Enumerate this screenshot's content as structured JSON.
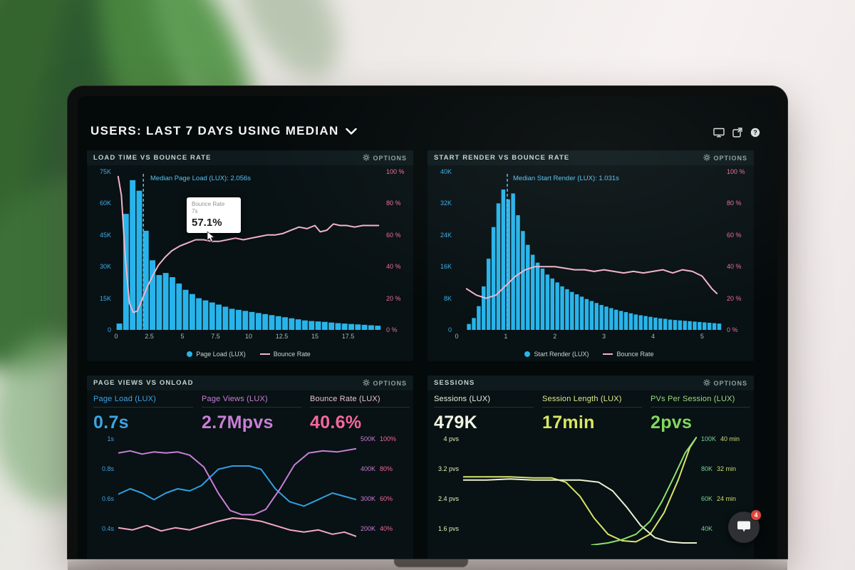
{
  "header": {
    "title": "USERS: LAST 7 DAYS USING MEDIAN",
    "icon_names": [
      "display-icon",
      "open-window-icon",
      "help-icon"
    ]
  },
  "panels": {
    "load": {
      "title": "LOAD TIME VS BOUNCE RATE",
      "options": "OPTIONS",
      "median_label": "Median Page Load (LUX): 2.056s",
      "tooltip": {
        "title": "Bounce Rate",
        "subtitle": "7s",
        "value": "57.1%"
      },
      "y_left": [
        "75K",
        "60K",
        "45K",
        "30K",
        "15K",
        "0"
      ],
      "y_right": [
        "100 %",
        "80 %",
        "60 %",
        "40 %",
        "20 %",
        "0 %"
      ],
      "legend": [
        "Page Load (LUX)",
        "Bounce Rate"
      ]
    },
    "render": {
      "title": "START RENDER VS BOUNCE RATE",
      "options": "OPTIONS",
      "median_label": "Median Start Render (LUX): 1.031s",
      "y_left": [
        "40K",
        "32K",
        "24K",
        "16K",
        "8K",
        "0"
      ],
      "y_right": [
        "100 %",
        "80 %",
        "60 %",
        "40 %",
        "20 %",
        "0 %"
      ],
      "legend": [
        "Start Render (LUX)",
        "Bounce Rate"
      ]
    },
    "views": {
      "title": "PAGE VIEWS VS ONLOAD",
      "options": "OPTIONS",
      "metrics": [
        {
          "label": "Page Load (LUX)",
          "value": "0.7s",
          "color": "#3da4e4"
        },
        {
          "label": "Page Views (LUX)",
          "value": "2.7Mpvs",
          "color": "#c77fd6"
        },
        {
          "label": "Bounce Rate (LUX)",
          "value": "40.6%",
          "color": "#f4679f"
        }
      ],
      "y_left": [
        "1s",
        "0.8s",
        "0.6s",
        "0.4s"
      ],
      "y_right": [
        [
          "500K",
          "100%"
        ],
        [
          "400K",
          "80%"
        ],
        [
          "300K",
          "60%"
        ],
        [
          "200K",
          "40%"
        ]
      ]
    },
    "sessions": {
      "title": "SESSIONS",
      "options": "OPTIONS",
      "metrics": [
        {
          "label": "Sessions (LUX)",
          "value": "479K",
          "color": "#f0f4e4"
        },
        {
          "label": "Session Length (LUX)",
          "value": "17min",
          "color": "#d9e662"
        },
        {
          "label": "PVs Per Session (LUX)",
          "value": "2pvs",
          "color": "#7fd95f"
        }
      ],
      "y_left": [
        "4 pvs",
        "3.2 pvs",
        "2.4 pvs",
        "1.6 pvs"
      ],
      "y_right": [
        [
          "100K",
          "40 min"
        ],
        [
          "80K",
          "32 min"
        ],
        [
          "60K",
          "24 min"
        ],
        [
          "40K",
          ""
        ]
      ]
    }
  },
  "chat": {
    "badge": "4"
  },
  "colors": {
    "bar_blue": "#28b4ea",
    "bounce_pink": "#f2b3ca",
    "median_blue": "#4fc3f4",
    "accent_purple": "#c77fd6",
    "accent_pink": "#f0679c",
    "accent_lime": "#d9e662",
    "accent_green": "#7fd95f",
    "badge_red": "#e0443a"
  },
  "chart_data": [
    {
      "id": "load",
      "type": "bar+line",
      "title": "LOAD TIME VS BOUNCE RATE",
      "x_start": 0,
      "x_step": 0.5,
      "x_max": 20,
      "y_left_max": 75,
      "y_left_unit": "K page views",
      "y_right_max": 100,
      "y_right_unit": "%",
      "bar_series": "Page Load (LUX)",
      "bar_color": "#28b4ea",
      "bars": [
        3,
        55,
        71,
        66,
        47,
        33,
        26,
        27,
        25,
        22,
        19,
        17,
        15,
        14,
        13,
        12,
        11,
        10,
        9.5,
        9,
        8.5,
        8,
        7.5,
        7,
        6.5,
        6,
        5.5,
        5,
        4.5,
        4.2,
        4,
        3.8,
        3.5,
        3.2,
        3,
        2.8,
        2.6,
        2.4,
        2.2,
        2
      ],
      "median_x": 2.056,
      "median_color": "#4fc3f4",
      "line_series": "Bounce Rate",
      "line_color": "#f2b3ca",
      "line_points": [
        [
          0.15,
          97
        ],
        [
          0.4,
          85
        ],
        [
          0.7,
          45
        ],
        [
          1,
          17
        ],
        [
          1.3,
          11
        ],
        [
          1.6,
          12
        ],
        [
          2,
          20
        ],
        [
          2.4,
          28
        ],
        [
          2.8,
          35
        ],
        [
          3.2,
          41
        ],
        [
          3.7,
          46
        ],
        [
          4.2,
          50
        ],
        [
          4.8,
          53
        ],
        [
          5.4,
          55
        ],
        [
          6,
          57
        ],
        [
          6.6,
          57
        ],
        [
          7.2,
          56
        ],
        [
          7.8,
          56
        ],
        [
          8.4,
          57
        ],
        [
          9,
          58
        ],
        [
          9.6,
          57
        ],
        [
          10.2,
          58
        ],
        [
          10.8,
          59
        ],
        [
          11.4,
          60
        ],
        [
          12,
          60
        ],
        [
          12.6,
          61
        ],
        [
          13.2,
          63
        ],
        [
          13.8,
          65
        ],
        [
          14.4,
          64
        ],
        [
          15,
          66
        ],
        [
          15.4,
          62
        ],
        [
          15.9,
          63
        ],
        [
          16.4,
          67
        ],
        [
          16.9,
          66
        ],
        [
          17.4,
          66
        ],
        [
          18,
          65
        ],
        [
          18.6,
          66
        ],
        [
          19.2,
          66
        ],
        [
          19.8,
          66
        ]
      ],
      "x_ticks": [
        {
          "v": 0,
          "label": "0"
        },
        {
          "v": 2.5,
          "label": "2.5"
        },
        {
          "v": 5,
          "label": "5"
        },
        {
          "v": 7.5,
          "label": "7.5"
        },
        {
          "v": 10,
          "label": "10"
        },
        {
          "v": 12.5,
          "label": "12.5"
        },
        {
          "v": 15,
          "label": "15"
        },
        {
          "v": 17.5,
          "label": "17.5"
        }
      ]
    },
    {
      "id": "render",
      "type": "bar+line",
      "title": "START RENDER VS BOUNCE RATE",
      "x_start": 0.2,
      "x_step": 0.1,
      "x_max": 5.4,
      "y_left_max": 40,
      "y_left_unit": "K page views",
      "y_right_max": 100,
      "y_right_unit": "%",
      "bar_series": "Start Render (LUX)",
      "bar_color": "#28b4ea",
      "bars": [
        1.5,
        3,
        6,
        11,
        18,
        26,
        32,
        35.5,
        33,
        34.5,
        29,
        25,
        21.5,
        19,
        17,
        15.5,
        14,
        13,
        12,
        11,
        10.3,
        9.6,
        9,
        8.4,
        7.8,
        7.3,
        6.8,
        6.3,
        5.9,
        5.5,
        5.1,
        4.8,
        4.5,
        4.2,
        3.9,
        3.7,
        3.5,
        3.3,
        3.1,
        2.9,
        2.8,
        2.6,
        2.5,
        2.4,
        2.3,
        2.2,
        2.1,
        2,
        1.9,
        1.8,
        1.7,
        1.6
      ],
      "median_x": 1.031,
      "median_color": "#4fc3f4",
      "line_series": "Bounce Rate",
      "line_color": "#f2b3ca",
      "line_points": [
        [
          0.2,
          26
        ],
        [
          0.4,
          22
        ],
        [
          0.6,
          20
        ],
        [
          0.8,
          22
        ],
        [
          1,
          28
        ],
        [
          1.2,
          34
        ],
        [
          1.4,
          38
        ],
        [
          1.6,
          40
        ],
        [
          1.8,
          40
        ],
        [
          2,
          40
        ],
        [
          2.2,
          39
        ],
        [
          2.4,
          38
        ],
        [
          2.6,
          38
        ],
        [
          2.8,
          37
        ],
        [
          3,
          38
        ],
        [
          3.2,
          37
        ],
        [
          3.4,
          36
        ],
        [
          3.6,
          37
        ],
        [
          3.8,
          36
        ],
        [
          4,
          37
        ],
        [
          4.2,
          38
        ],
        [
          4.4,
          36
        ],
        [
          4.6,
          38
        ],
        [
          4.8,
          37
        ],
        [
          5,
          34
        ],
        [
          5.1,
          30
        ],
        [
          5.2,
          26
        ],
        [
          5.3,
          23
        ]
      ],
      "x_ticks": [
        {
          "v": 0,
          "label": "0"
        },
        {
          "v": 1,
          "label": "1"
        },
        {
          "v": 2,
          "label": "2"
        },
        {
          "v": 3,
          "label": "3"
        },
        {
          "v": 4,
          "label": "4"
        },
        {
          "v": 5,
          "label": "5"
        }
      ]
    },
    {
      "id": "views",
      "type": "line",
      "title": "PAGE VIEWS VS ONLOAD",
      "series": [
        {
          "name": "Page Load (LUX)",
          "color": "#2f9fe0",
          "points": [
            [
              0,
              0.47
            ],
            [
              0.05,
              0.52
            ],
            [
              0.1,
              0.48
            ],
            [
              0.15,
              0.42
            ],
            [
              0.2,
              0.48
            ],
            [
              0.25,
              0.52
            ],
            [
              0.3,
              0.5
            ],
            [
              0.35,
              0.55
            ],
            [
              0.42,
              0.7
            ],
            [
              0.48,
              0.73
            ],
            [
              0.55,
              0.73
            ],
            [
              0.6,
              0.7
            ],
            [
              0.66,
              0.52
            ],
            [
              0.72,
              0.4
            ],
            [
              0.78,
              0.36
            ],
            [
              0.84,
              0.42
            ],
            [
              0.9,
              0.48
            ],
            [
              0.95,
              0.45
            ],
            [
              1,
              0.42
            ]
          ]
        },
        {
          "name": "Page Views (LUX)",
          "color": "#c77fd6",
          "points": [
            [
              0,
              0.85
            ],
            [
              0.05,
              0.87
            ],
            [
              0.1,
              0.84
            ],
            [
              0.15,
              0.86
            ],
            [
              0.2,
              0.85
            ],
            [
              0.25,
              0.86
            ],
            [
              0.3,
              0.83
            ],
            [
              0.36,
              0.72
            ],
            [
              0.42,
              0.48
            ],
            [
              0.47,
              0.32
            ],
            [
              0.52,
              0.28
            ],
            [
              0.57,
              0.28
            ],
            [
              0.62,
              0.33
            ],
            [
              0.68,
              0.52
            ],
            [
              0.74,
              0.74
            ],
            [
              0.8,
              0.85
            ],
            [
              0.86,
              0.87
            ],
            [
              0.92,
              0.86
            ],
            [
              1,
              0.89
            ]
          ]
        },
        {
          "name": "Bounce Rate (LUX)",
          "color": "#f2a8c3",
          "points": [
            [
              0,
              0.16
            ],
            [
              0.06,
              0.14
            ],
            [
              0.12,
              0.18
            ],
            [
              0.18,
              0.13
            ],
            [
              0.24,
              0.16
            ],
            [
              0.3,
              0.14
            ],
            [
              0.36,
              0.18
            ],
            [
              0.42,
              0.22
            ],
            [
              0.48,
              0.25
            ],
            [
              0.54,
              0.24
            ],
            [
              0.6,
              0.22
            ],
            [
              0.66,
              0.18
            ],
            [
              0.72,
              0.14
            ],
            [
              0.78,
              0.12
            ],
            [
              0.84,
              0.14
            ],
            [
              0.9,
              0.1
            ],
            [
              0.95,
              0.12
            ],
            [
              1,
              0.08
            ]
          ]
        }
      ]
    },
    {
      "id": "sessions",
      "type": "line",
      "title": "SESSIONS",
      "series": [
        {
          "name": "Session Length (LUX)",
          "color": "#d8e468",
          "points": [
            [
              0,
              0.63
            ],
            [
              0.1,
              0.63
            ],
            [
              0.2,
              0.63
            ],
            [
              0.3,
              0.62
            ],
            [
              0.38,
              0.62
            ],
            [
              0.44,
              0.58
            ],
            [
              0.5,
              0.45
            ],
            [
              0.56,
              0.25
            ],
            [
              0.62,
              0.1
            ],
            [
              0.68,
              0.04
            ],
            [
              0.74,
              0.03
            ],
            [
              0.8,
              0.1
            ],
            [
              0.86,
              0.3
            ],
            [
              0.92,
              0.6
            ],
            [
              0.97,
              0.9
            ],
            [
              1,
              1
            ]
          ]
        },
        {
          "name": "PVs Per Session (LUX)",
          "color": "#e9f1cf",
          "points": [
            [
              0,
              0.6
            ],
            [
              0.1,
              0.6
            ],
            [
              0.2,
              0.61
            ],
            [
              0.3,
              0.6
            ],
            [
              0.4,
              0.6
            ],
            [
              0.5,
              0.6
            ],
            [
              0.58,
              0.58
            ],
            [
              0.64,
              0.5
            ],
            [
              0.7,
              0.35
            ],
            [
              0.76,
              0.18
            ],
            [
              0.82,
              0.07
            ],
            [
              0.88,
              0.03
            ],
            [
              0.94,
              0.02
            ],
            [
              1,
              0.02
            ]
          ]
        },
        {
          "name": "Sessions (LUX)",
          "color": "#8ce06e",
          "points": [
            [
              0.55,
              0
            ],
            [
              0.62,
              0.02
            ],
            [
              0.68,
              0.05
            ],
            [
              0.74,
              0.1
            ],
            [
              0.8,
              0.22
            ],
            [
              0.85,
              0.4
            ],
            [
              0.9,
              0.62
            ],
            [
              0.95,
              0.85
            ],
            [
              1,
              1
            ]
          ]
        }
      ]
    }
  ]
}
